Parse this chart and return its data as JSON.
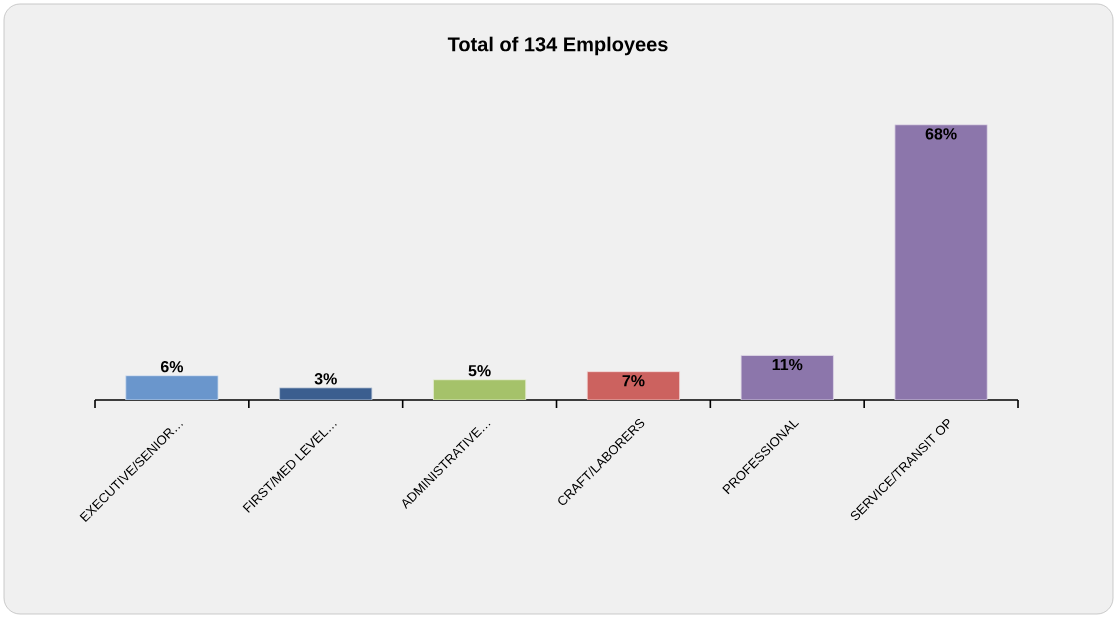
{
  "chart_data": {
    "type": "bar",
    "title": "Total of 134 Employees",
    "categories": [
      "EXECUTIVE/SENIOR…",
      "FIRST/MED LEVEL…",
      "ADMINISTRATIVE…",
      "CRAFT/LABORERS",
      "PROFESSIONAL",
      "SERVICE/TRANSIT OP"
    ],
    "values": [
      6,
      3,
      5,
      7,
      11,
      68
    ],
    "value_labels": [
      "6%",
      "3%",
      "5%",
      "7%",
      "11%",
      "68%"
    ],
    "colors": [
      "#6a96cc",
      "#3b5e8f",
      "#a5c26a",
      "#cc625f",
      "#8c76ab",
      "#8c76ab"
    ]
  }
}
